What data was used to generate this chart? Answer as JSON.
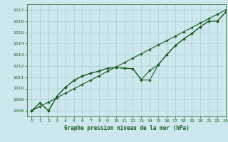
{
  "title": "Graphe pression niveau de la mer (hPa)",
  "xlim": [
    -0.5,
    23
  ],
  "ylim": [
    1007.5,
    1017.5
  ],
  "yticks": [
    1008,
    1009,
    1010,
    1011,
    1012,
    1013,
    1014,
    1015,
    1016,
    1017
  ],
  "xticks": [
    0,
    1,
    2,
    3,
    4,
    5,
    6,
    7,
    8,
    9,
    10,
    11,
    12,
    13,
    14,
    15,
    16,
    17,
    18,
    19,
    20,
    21,
    22,
    23
  ],
  "bg_color": "#cce8ee",
  "grid_color": "#aacccc",
  "line_color": "#1a5c1a",
  "line_straight": {
    "x": [
      0,
      1,
      2,
      3,
      4,
      5,
      6,
      7,
      8,
      9,
      10,
      11,
      12,
      13,
      14,
      15,
      16,
      17,
      18,
      19,
      20,
      21,
      22,
      23
    ],
    "y": [
      1008.0,
      1008.39,
      1008.78,
      1009.17,
      1009.57,
      1009.96,
      1010.35,
      1010.74,
      1011.13,
      1011.52,
      1011.91,
      1012.3,
      1012.7,
      1013.09,
      1013.48,
      1013.87,
      1014.26,
      1014.65,
      1015.04,
      1015.43,
      1015.83,
      1016.22,
      1016.61,
      1017.0
    ]
  },
  "line_upper": {
    "x": [
      0,
      1,
      2,
      3,
      4,
      5,
      6,
      7,
      8,
      9,
      10,
      11,
      12,
      13,
      14,
      15,
      16,
      17,
      18,
      19,
      20,
      21,
      22,
      23
    ],
    "y": [
      1008.0,
      1008.7,
      1008.0,
      1009.3,
      1010.1,
      1010.7,
      1011.1,
      1011.35,
      1011.55,
      1011.8,
      1011.85,
      1011.8,
      1011.75,
      1010.8,
      1011.6,
      1012.1,
      1013.0,
      1013.8,
      1014.4,
      1014.9,
      1015.5,
      1016.0,
      1016.0,
      1016.8
    ]
  },
  "line_wavy": {
    "x": [
      0,
      1,
      2,
      3,
      4,
      5,
      6,
      7,
      8,
      9,
      10,
      11,
      12,
      13,
      14,
      15,
      16,
      17,
      18,
      19,
      20,
      21,
      22,
      23
    ],
    "y": [
      1008.0,
      1008.7,
      1008.0,
      1009.3,
      1010.1,
      1010.7,
      1011.1,
      1011.35,
      1011.55,
      1011.8,
      1011.85,
      1011.8,
      1011.75,
      1010.75,
      1010.75,
      1012.1,
      1013.0,
      1013.8,
      1014.4,
      1014.9,
      1015.5,
      1016.0,
      1016.0,
      1016.8
    ]
  }
}
